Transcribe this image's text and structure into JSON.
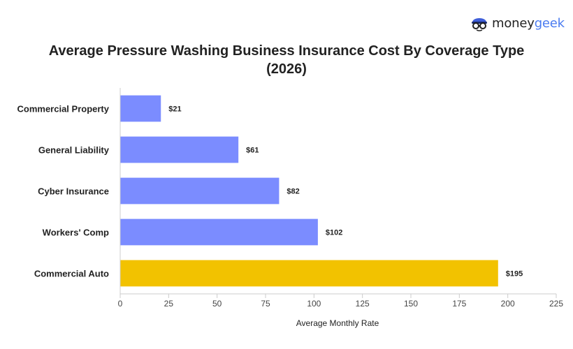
{
  "brand": {
    "name_part1": "money",
    "name_part2": "geek",
    "logo_icon": "glasses-face-icon"
  },
  "chart_data": {
    "type": "bar",
    "orientation": "horizontal",
    "title_line1": "Average Pressure Washing Business Insurance Cost By Coverage Type",
    "title_line2": "(2026)",
    "xlabel": "Average Monthly Rate",
    "ylabel": "",
    "xlim": [
      0,
      225
    ],
    "xticks": [
      0,
      25,
      50,
      75,
      100,
      125,
      150,
      175,
      200,
      225
    ],
    "categories": [
      "Commercial Property",
      "General Liability",
      "Cyber Insurance",
      "Workers' Comp",
      "Commercial Auto"
    ],
    "values": [
      21,
      61,
      82,
      102,
      195
    ],
    "value_labels": [
      "$21",
      "$61",
      "$82",
      "$102",
      "$195"
    ],
    "colors": [
      "#7b8cff",
      "#7b8cff",
      "#7b8cff",
      "#7b8cff",
      "#f2c200"
    ],
    "grid": false,
    "legend": "none"
  }
}
